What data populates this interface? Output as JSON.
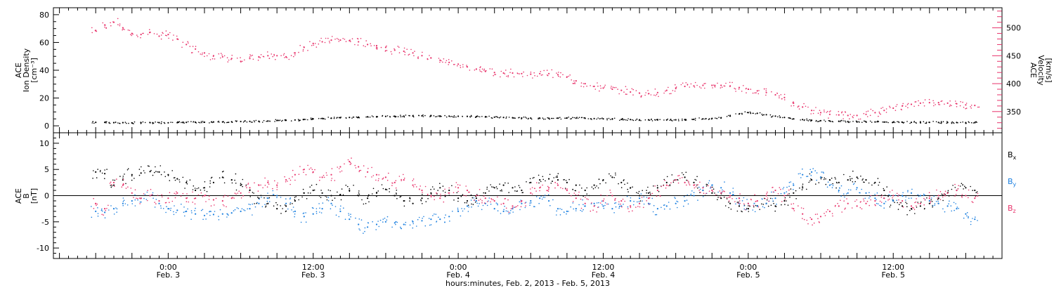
{
  "colors": {
    "black": "#000000",
    "pink": "#e8336b",
    "blue": "#1a7fe0"
  },
  "chart_data": [
    {
      "type": "scatter",
      "panel": "top",
      "left_axis": {
        "label_lines": [
          "ACE",
          "Ion Density",
          "[cm⁻³]"
        ],
        "ylim": [
          -5,
          85
        ],
        "ticks": [
          0,
          20,
          40,
          60,
          80
        ]
      },
      "right_axis": {
        "label_lines": [
          "ACE",
          "Velocity",
          "[km/s]"
        ],
        "ylim": [
          312,
          536
        ],
        "ticks": [
          350,
          400,
          450,
          500
        ],
        "tick_labels": [
          "350",
          "400",
          "450",
          "500"
        ]
      },
      "series": [
        {
          "axis": "left",
          "color": "#000000",
          "x": [
            0,
            3,
            6,
            9,
            12,
            15,
            18,
            21,
            24,
            27,
            30,
            33,
            36,
            39,
            42,
            45,
            48,
            51,
            54,
            57,
            60,
            63,
            66,
            69,
            72,
            75,
            78,
            81,
            84,
            87,
            90,
            93,
            96,
            99,
            102,
            105,
            108,
            111,
            114,
            117,
            120,
            123,
            126,
            129,
            132,
            135,
            138,
            141,
            144,
            147,
            150,
            153,
            156,
            159,
            162,
            165,
            168,
            171,
            174,
            177,
            180,
            183,
            186,
            189,
            192,
            195,
            198,
            201,
            204,
            207,
            210,
            213,
            216,
            219,
            222,
            225,
            228,
            231,
            234,
            237,
            240,
            243,
            246,
            249,
            252,
            255,
            258,
            261,
            264,
            267,
            270,
            273,
            276,
            279,
            282,
            285,
            288,
            291
          ],
          "y": [
            2.5,
            2.5,
            2.3,
            2.3,
            2.2,
            2.2,
            2.3,
            2.3,
            2.2,
            2.3,
            2.5,
            2.6,
            2.6,
            2.8,
            2.8,
            2.9,
            3.1,
            3.2,
            3.3,
            3.5,
            3.8,
            4.0,
            4.2,
            4.6,
            5.0,
            5.3,
            5.5,
            5.8,
            6.0,
            6.3,
            6.5,
            6.6,
            6.8,
            6.9,
            7.0,
            7.1,
            7.2,
            7.2,
            7.1,
            7.0,
            6.9,
            6.8,
            6.6,
            6.4,
            6.2,
            6.0,
            5.8,
            5.6,
            5.5,
            5.4,
            5.4,
            5.5,
            5.6,
            5.5,
            5.4,
            5.2,
            5.0,
            4.8,
            4.6,
            4.5,
            4.3,
            4.3,
            4.2,
            4.2,
            4.3,
            4.5,
            4.7,
            5.0,
            5.3,
            5.8,
            7.0,
            8.5,
            9.5,
            9.0,
            8.0,
            7.0,
            6.0,
            5.0,
            4.5,
            4.0,
            3.7,
            3.5,
            3.3,
            3.1,
            3.0,
            2.9,
            2.8,
            2.7,
            2.6,
            2.6,
            2.5,
            2.5,
            2.5,
            2.4,
            2.4,
            2.4,
            2.3,
            2.3
          ]
        },
        {
          "axis": "right",
          "color": "#e8336b",
          "x": [
            0,
            3,
            6,
            9,
            12,
            15,
            18,
            21,
            24,
            27,
            30,
            33,
            36,
            39,
            42,
            45,
            48,
            51,
            54,
            57,
            60,
            63,
            66,
            69,
            72,
            75,
            78,
            81,
            84,
            87,
            90,
            93,
            96,
            99,
            102,
            105,
            108,
            111,
            114,
            117,
            120,
            123,
            126,
            129,
            132,
            135,
            138,
            141,
            144,
            147,
            150,
            153,
            156,
            159,
            162,
            165,
            168,
            171,
            174,
            177,
            180,
            183,
            186,
            189,
            192,
            195,
            198,
            201,
            204,
            207,
            210,
            213,
            216,
            219,
            222,
            225,
            228,
            231,
            234,
            237,
            240,
            243,
            246,
            249,
            252,
            255,
            258,
            261,
            264,
            267,
            270,
            273,
            276,
            279,
            282,
            285,
            288,
            291
          ],
          "y": [
            495,
            505,
            510,
            500,
            490,
            488,
            492,
            485,
            488,
            480,
            470,
            462,
            455,
            450,
            448,
            445,
            440,
            445,
            448,
            450,
            450,
            448,
            455,
            465,
            472,
            475,
            478,
            478,
            477,
            475,
            470,
            468,
            465,
            460,
            458,
            455,
            450,
            446,
            442,
            438,
            435,
            430,
            426,
            422,
            420,
            419,
            419,
            418,
            417,
            418,
            418,
            416,
            412,
            405,
            400,
            395,
            392,
            390,
            388,
            385,
            383,
            382,
            384,
            388,
            392,
            395,
            396,
            397,
            397,
            397,
            396,
            393,
            390,
            387,
            384,
            380,
            375,
            365,
            358,
            352,
            348,
            345,
            344,
            343,
            343,
            345,
            348,
            352,
            356,
            360,
            363,
            365,
            366,
            366,
            365,
            364,
            362,
            361
          ]
        }
      ]
    },
    {
      "type": "scatter",
      "panel": "bottom",
      "left_axis": {
        "label_lines": [
          "ACE",
          "B",
          "[nT]"
        ],
        "ylim": [
          -12,
          12
        ],
        "ticks": [
          -10,
          -5,
          0,
          5,
          10
        ]
      },
      "zero_line": true,
      "legend": [
        {
          "text": "B",
          "sub": "x",
          "color": "#000000"
        },
        {
          "text": "B",
          "sub": "y",
          "color": "#1a7fe0"
        },
        {
          "text": "B",
          "sub": "z",
          "color": "#e8336b"
        }
      ],
      "series": [
        {
          "name": "Bx",
          "color": "#000000",
          "x": [
            0,
            3,
            6,
            9,
            12,
            15,
            18,
            21,
            24,
            27,
            30,
            33,
            36,
            39,
            42,
            45,
            48,
            51,
            54,
            57,
            60,
            63,
            66,
            69,
            72,
            75,
            78,
            81,
            84,
            87,
            90,
            93,
            96,
            99,
            102,
            105,
            108,
            111,
            114,
            117,
            120,
            123,
            126,
            129,
            132,
            135,
            138,
            141,
            144,
            147,
            150,
            153,
            156,
            159,
            162,
            165,
            168,
            171,
            174,
            177,
            180,
            183,
            186,
            189,
            192,
            195,
            198,
            201,
            204,
            207,
            210,
            213,
            216,
            219,
            222,
            225,
            228,
            231,
            234,
            237,
            240,
            243,
            246,
            249,
            252,
            255,
            258,
            261,
            264,
            267,
            270,
            273,
            276,
            279,
            282,
            285,
            288,
            291
          ],
          "y": [
            4.5,
            4.2,
            2.0,
            3.0,
            4.0,
            4.3,
            4.6,
            4.5,
            4.0,
            3.2,
            2.5,
            1.0,
            1.5,
            2.5,
            3.5,
            3.0,
            2.0,
            1.0,
            -0.5,
            -1.5,
            -2.5,
            -2.0,
            -1.0,
            0.5,
            1.0,
            0.5,
            0.0,
            0.2,
            1.0,
            0.0,
            -0.5,
            0.5,
            1.2,
            0.0,
            -1.0,
            -1.5,
            -0.5,
            0.5,
            1.5,
            1.0,
            -0.5,
            -1.0,
            -0.5,
            0.5,
            1.5,
            2.0,
            1.5,
            1.0,
            2.5,
            3.0,
            3.2,
            3.0,
            2.5,
            2.0,
            1.0,
            2.0,
            3.0,
            3.5,
            2.5,
            1.5,
            0.0,
            0.5,
            1.5,
            2.5,
            3.0,
            3.5,
            2.5,
            1.0,
            0.5,
            -0.5,
            -1.5,
            -2.0,
            -2.5,
            -2.0,
            -1.5,
            -2.0,
            -1.0,
            0.5,
            1.5,
            3.0,
            3.5,
            3.0,
            2.5,
            3.0,
            3.5,
            3.0,
            2.5,
            1.0,
            -1.0,
            -2.0,
            -2.5,
            -2.0,
            -1.5,
            -0.5,
            0.5,
            1.0,
            1.5,
            1.0
          ]
        },
        {
          "name": "By",
          "color": "#1a7fe0",
          "x": [
            0,
            3,
            6,
            9,
            12,
            15,
            18,
            21,
            24,
            27,
            30,
            33,
            36,
            39,
            42,
            45,
            48,
            51,
            54,
            57,
            60,
            63,
            66,
            69,
            72,
            75,
            78,
            81,
            84,
            87,
            90,
            93,
            96,
            99,
            102,
            105,
            108,
            111,
            114,
            117,
            120,
            123,
            126,
            129,
            132,
            135,
            138,
            141,
            144,
            147,
            150,
            153,
            156,
            159,
            162,
            165,
            168,
            171,
            174,
            177,
            180,
            183,
            186,
            189,
            192,
            195,
            198,
            201,
            204,
            207,
            210,
            213,
            216,
            219,
            222,
            225,
            228,
            231,
            234,
            237,
            240,
            243,
            246,
            249,
            252,
            255,
            258,
            261,
            264,
            267,
            270,
            273,
            276,
            279,
            282,
            285,
            288,
            291
          ],
          "y": [
            -3.0,
            -3.2,
            -2.5,
            -1.5,
            -1.0,
            -0.5,
            0.0,
            -1.5,
            -2.5,
            -2.8,
            -3.0,
            -3.5,
            -3.8,
            -3.6,
            -3.5,
            -3.3,
            -3.0,
            -2.5,
            -1.5,
            -0.5,
            0.0,
            -1.5,
            -3.0,
            -4.0,
            -3.5,
            -2.5,
            -1.5,
            -3.0,
            -4.5,
            -5.5,
            -6.0,
            -5.5,
            -5.0,
            -5.2,
            -5.5,
            -5.0,
            -4.8,
            -4.5,
            -4.5,
            -4.0,
            -3.0,
            -2.0,
            -1.0,
            -1.5,
            -2.5,
            -3.0,
            -2.5,
            -1.5,
            -1.0,
            -0.5,
            -1.0,
            -2.5,
            -3.0,
            -2.5,
            -2.0,
            -1.5,
            -2.0,
            -2.5,
            -2.0,
            -1.0,
            -0.5,
            -1.5,
            -2.5,
            -2.0,
            -1.5,
            -1.0,
            0.0,
            1.0,
            2.0,
            1.5,
            0.5,
            -0.5,
            -1.5,
            -2.0,
            -1.5,
            -0.5,
            0.5,
            2.0,
            4.0,
            4.5,
            3.5,
            2.0,
            1.0,
            0.5,
            1.5,
            0.5,
            -0.5,
            -1.5,
            -1.0,
            0.0,
            0.5,
            0.0,
            -1.0,
            -1.5,
            -2.0,
            -2.5,
            -3.5,
            -4.5
          ]
        },
        {
          "name": "Bz",
          "color": "#e8336b",
          "x": [
            0,
            3,
            6,
            9,
            12,
            15,
            18,
            21,
            24,
            27,
            30,
            33,
            36,
            39,
            42,
            45,
            48,
            51,
            54,
            57,
            60,
            63,
            66,
            69,
            72,
            75,
            78,
            81,
            84,
            87,
            90,
            93,
            96,
            99,
            102,
            105,
            108,
            111,
            114,
            117,
            120,
            123,
            126,
            129,
            132,
            135,
            138,
            141,
            144,
            147,
            150,
            153,
            156,
            159,
            162,
            165,
            168,
            171,
            174,
            177,
            180,
            183,
            186,
            189,
            192,
            195,
            198,
            201,
            204,
            207,
            210,
            213,
            216,
            219,
            222,
            225,
            228,
            231,
            234,
            237,
            240,
            243,
            246,
            249,
            252,
            255,
            258,
            261,
            264,
            267,
            270,
            273,
            276,
            279,
            282,
            285,
            288,
            291
          ],
          "y": [
            -1.5,
            -2.5,
            2.5,
            2.0,
            0.5,
            -0.5,
            0.0,
            -1.0,
            -0.5,
            0.5,
            -0.5,
            -0.5,
            0.0,
            -0.8,
            -1.0,
            -0.5,
            0.5,
            1.5,
            2.0,
            2.5,
            2.0,
            3.0,
            4.0,
            5.0,
            4.5,
            3.5,
            4.0,
            5.5,
            6.5,
            5.5,
            4.5,
            4.0,
            3.5,
            2.5,
            3.0,
            2.0,
            1.0,
            0.0,
            -0.5,
            0.5,
            1.5,
            1.0,
            0.0,
            -0.5,
            -1.0,
            -1.5,
            -2.0,
            -1.0,
            0.5,
            1.5,
            1.5,
            2.0,
            1.0,
            -0.5,
            -1.5,
            -2.0,
            -1.0,
            0.0,
            -1.0,
            -2.0,
            -1.5,
            -0.5,
            1.0,
            2.0,
            3.0,
            2.5,
            2.0,
            1.5,
            1.0,
            0.5,
            0.0,
            -0.5,
            -1.5,
            -1.0,
            0.0,
            1.0,
            0.0,
            -2.5,
            -3.5,
            -4.5,
            -4.0,
            -3.0,
            -2.0,
            -1.5,
            -2.0,
            -1.5,
            -1.0,
            -0.5,
            0.0,
            -1.0,
            -2.0,
            -1.5,
            -0.5,
            0.0,
            0.5,
            1.0,
            0.0,
            -0.5
          ]
        }
      ]
    }
  ],
  "x_axis": {
    "xlim": [
      -14,
      300
    ],
    "ticks": [
      {
        "value": 24,
        "time": "0:00",
        "date": "Feb. 3"
      },
      {
        "value": 72,
        "time": "12:00",
        "date": "Feb. 3"
      },
      {
        "value": 120,
        "time": "0:00",
        "date": "Feb. 4"
      },
      {
        "value": 168,
        "time": "12:00",
        "date": "Feb. 4"
      },
      {
        "value": 216,
        "time": "0:00",
        "date": "Feb. 5"
      },
      {
        "value": 264,
        "time": "12:00",
        "date": "Feb. 5"
      }
    ],
    "title": "hours:minutes, Feb.  2, 2013 - Feb.  5, 2013"
  }
}
